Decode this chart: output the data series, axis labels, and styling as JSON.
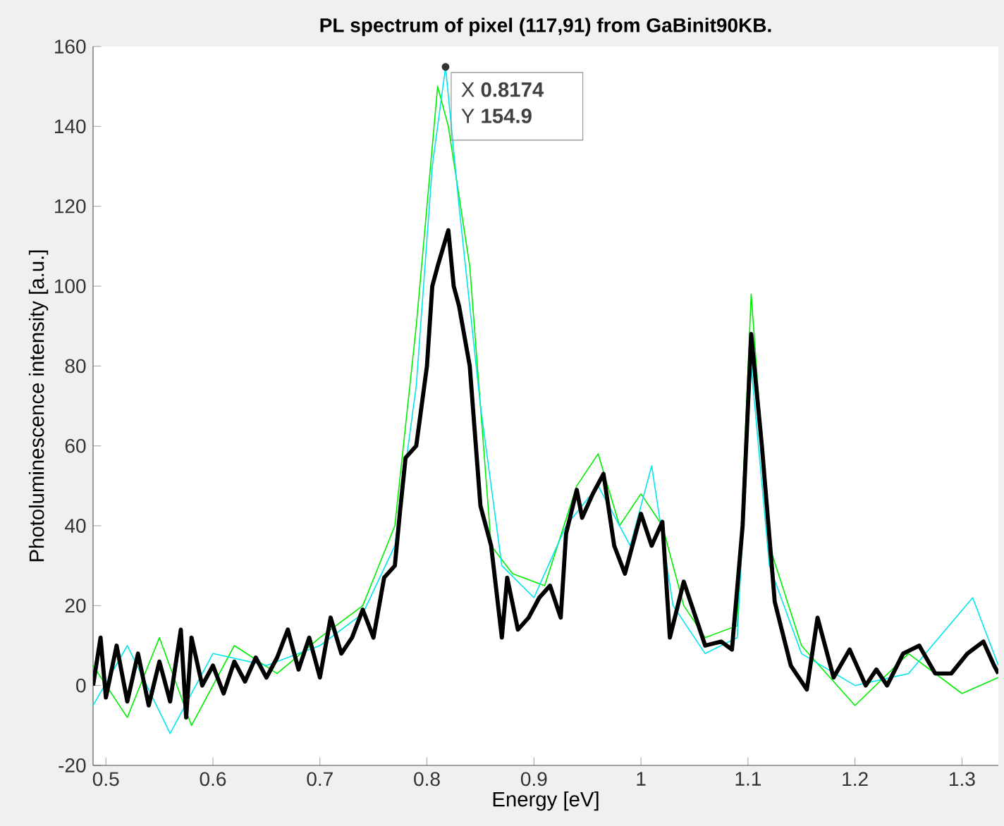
{
  "chart_data": {
    "type": "line",
    "title": "PL spectrum of pixel (117,91) from GaBinit90KB.",
    "xlabel": "Energy [eV]",
    "ylabel": "Photoluminescence intensity [a.u.]",
    "xlim": [
      0.488,
      1.334
    ],
    "ylim": [
      -20,
      160
    ],
    "xticks": [
      0.5,
      0.6,
      0.7,
      0.8,
      0.9,
      1,
      1.1,
      1.2,
      1.3
    ],
    "yticks": [
      -20,
      0,
      20,
      40,
      60,
      80,
      100,
      120,
      140,
      160
    ],
    "grid": false,
    "marker": "none",
    "line_style": "solid",
    "annotations": [
      {
        "text": "X **0.8174**",
        "x": 0.8174,
        "y": 154.9
      },
      {
        "text": "Y **154.9**",
        "x": 0.8174,
        "y": 154.9
      }
    ],
    "series": [
      {
        "color": "#00ee00",
        "x": [
          0.488,
          0.52,
          0.55,
          0.58,
          0.62,
          0.66,
          0.7,
          0.74,
          0.77,
          0.79,
          0.81,
          0.82,
          0.84,
          0.86,
          0.88,
          0.91,
          0.94,
          0.96,
          0.98,
          1.0,
          1.02,
          1.04,
          1.06,
          1.09,
          1.103,
          1.12,
          1.15,
          1.2,
          1.25,
          1.3,
          1.334
        ],
        "values": [
          5,
          -8,
          12,
          -10,
          10,
          3,
          12,
          20,
          40,
          90,
          150,
          140,
          105,
          35,
          28,
          25,
          50,
          58,
          40,
          48,
          40,
          20,
          12,
          15,
          98,
          35,
          10,
          -5,
          8,
          -2,
          2
        ]
      },
      {
        "color": "#00e5ee",
        "x": [
          0.488,
          0.52,
          0.56,
          0.6,
          0.65,
          0.7,
          0.74,
          0.77,
          0.79,
          0.805,
          0.8174,
          0.83,
          0.85,
          0.87,
          0.9,
          0.93,
          0.96,
          0.99,
          1.01,
          1.03,
          1.06,
          1.09,
          1.103,
          1.12,
          1.15,
          1.2,
          1.25,
          1.31,
          1.334
        ],
        "values": [
          -5,
          10,
          -12,
          8,
          5,
          10,
          18,
          35,
          75,
          130,
          154.9,
          120,
          70,
          30,
          22,
          40,
          50,
          35,
          55,
          20,
          8,
          12,
          80,
          30,
          8,
          0,
          3,
          22,
          5
        ]
      },
      {
        "color": "#000000",
        "x": [
          0.488,
          0.495,
          0.5,
          0.51,
          0.52,
          0.53,
          0.54,
          0.55,
          0.56,
          0.57,
          0.575,
          0.58,
          0.59,
          0.6,
          0.61,
          0.62,
          0.63,
          0.64,
          0.65,
          0.66,
          0.67,
          0.68,
          0.69,
          0.7,
          0.71,
          0.72,
          0.73,
          0.74,
          0.75,
          0.76,
          0.77,
          0.775,
          0.78,
          0.79,
          0.8,
          0.805,
          0.81,
          0.82,
          0.825,
          0.83,
          0.84,
          0.85,
          0.86,
          0.87,
          0.875,
          0.885,
          0.895,
          0.905,
          0.915,
          0.925,
          0.93,
          0.94,
          0.945,
          0.955,
          0.965,
          0.975,
          0.985,
          1.0,
          1.01,
          1.02,
          1.027,
          1.04,
          1.06,
          1.075,
          1.085,
          1.095,
          1.103,
          1.113,
          1.125,
          1.14,
          1.155,
          1.165,
          1.18,
          1.195,
          1.21,
          1.22,
          1.23,
          1.245,
          1.26,
          1.275,
          1.29,
          1.305,
          1.32,
          1.33,
          1.334
        ],
        "values": [
          0,
          12,
          -3,
          10,
          -4,
          8,
          -5,
          6,
          -4,
          14,
          -8,
          12,
          0,
          5,
          -2,
          6,
          1,
          7,
          2,
          7,
          14,
          4,
          12,
          2,
          17,
          8,
          12,
          19,
          12,
          27,
          30,
          44,
          57,
          60,
          80,
          100,
          105,
          114,
          100,
          95,
          80,
          45,
          35,
          12,
          27,
          14,
          17,
          22,
          25,
          17,
          38,
          49,
          42,
          48,
          53,
          35,
          28,
          43,
          35,
          41,
          12,
          26,
          10,
          11,
          9,
          40,
          88,
          60,
          21,
          5,
          -1,
          17,
          2,
          9,
          0,
          4,
          0,
          8,
          10,
          3,
          3,
          8,
          11,
          5,
          3
        ]
      }
    ]
  }
}
